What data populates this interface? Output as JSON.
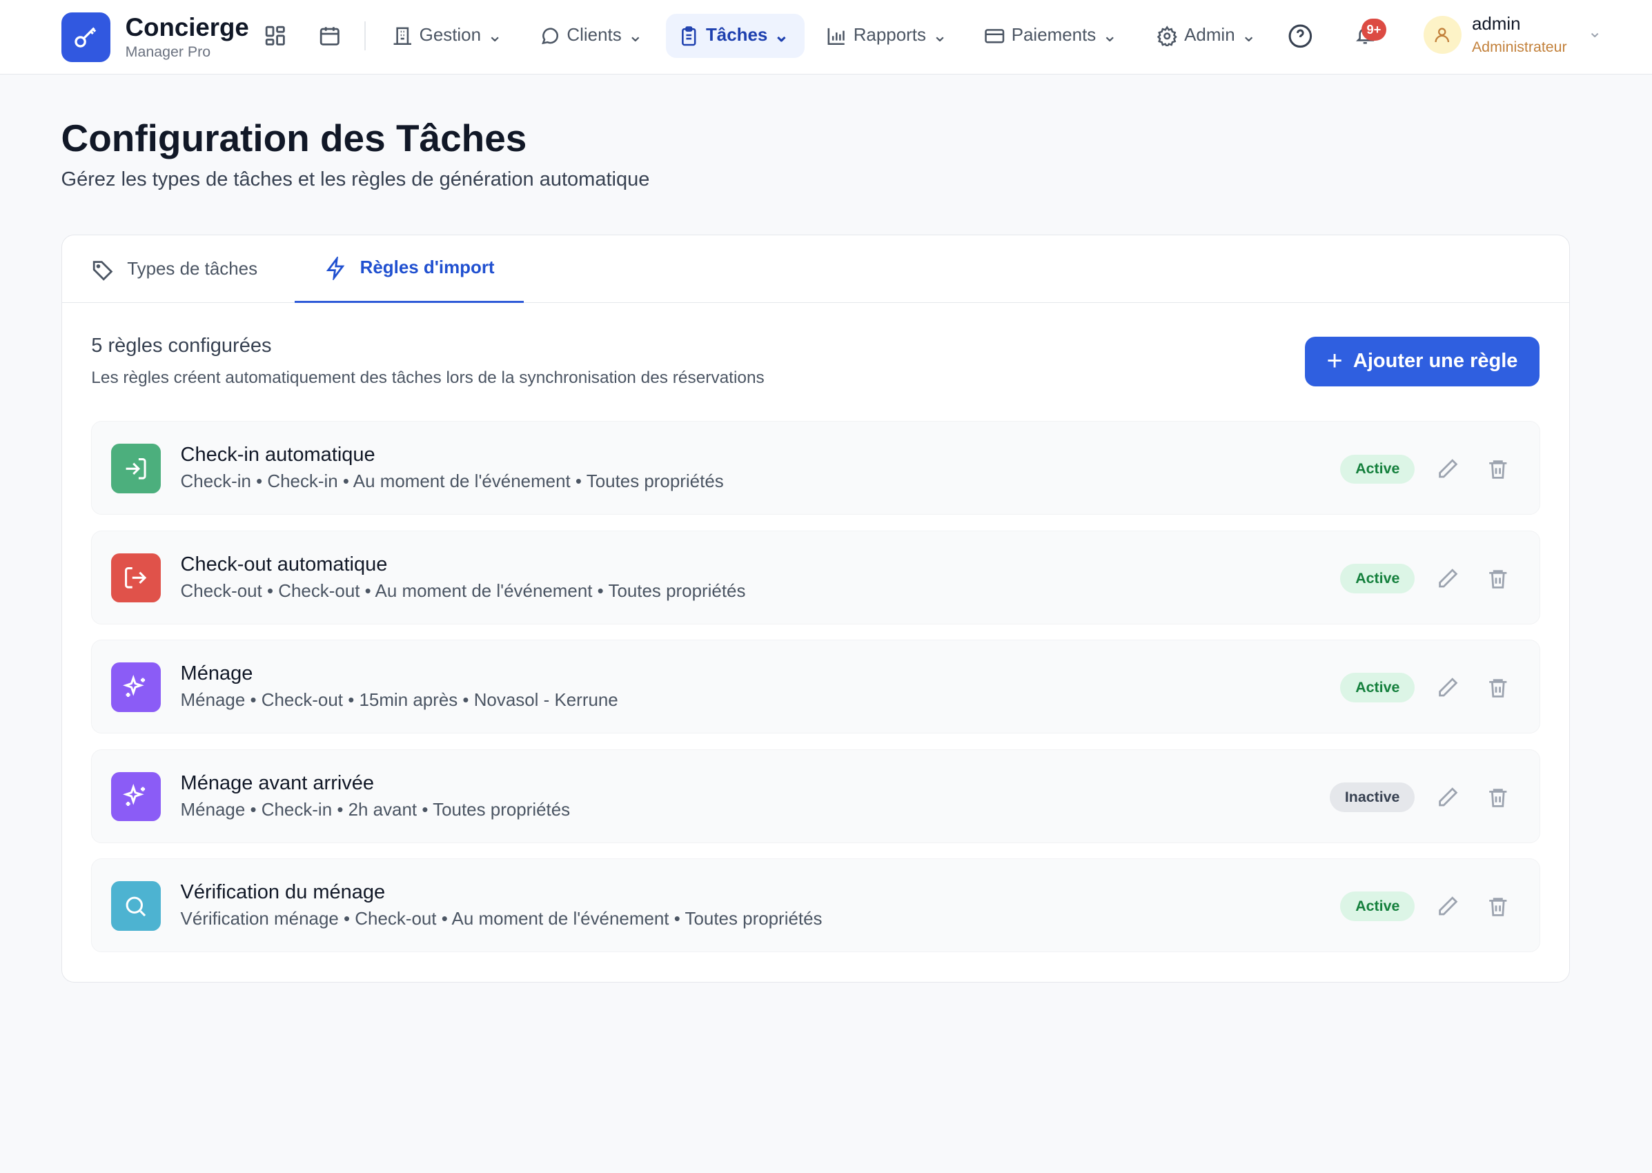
{
  "header": {
    "brand_title": "Concierge",
    "brand_subtitle": "Manager Pro",
    "nav": [
      {
        "label": "Gestion",
        "icon": "building-icon"
      },
      {
        "label": "Clients",
        "icon": "message-icon"
      },
      {
        "label": "Tâches",
        "icon": "clipboard-icon",
        "active": true
      },
      {
        "label": "Rapports",
        "icon": "bar-chart-icon"
      },
      {
        "label": "Paiements",
        "icon": "credit-card-icon"
      },
      {
        "label": "Admin",
        "icon": "gear-icon"
      }
    ],
    "notification_count": "9+",
    "user_name": "admin",
    "user_role": "Administrateur"
  },
  "page": {
    "title": "Configuration des Tâches",
    "subtitle": "Gérez les types de tâches et les règles de génération automatique"
  },
  "tabs": [
    {
      "label": "Types de tâches"
    },
    {
      "label": "Règles d'import",
      "active": true
    }
  ],
  "rules_panel": {
    "count_label": "5 règles configurées",
    "description": "Les règles créent automatiquement des tâches lors de la synchronisation des réservations",
    "add_button": "Ajouter une règle",
    "rules": [
      {
        "title": "Check-in automatique",
        "meta": "Check-in • Check-in • Au moment de l'événement • Toutes propriétés",
        "status": "Active",
        "icon": "login-icon",
        "color": "#4caf7d"
      },
      {
        "title": "Check-out automatique",
        "meta": "Check-out • Check-out • Au moment de l'événement • Toutes propriétés",
        "status": "Active",
        "icon": "logout-icon",
        "color": "#e0524a"
      },
      {
        "title": "Ménage",
        "meta": "Ménage • Check-out • 15min après • Novasol - Kerrune",
        "status": "Active",
        "icon": "sparkles-icon",
        "color": "#8b5cf6"
      },
      {
        "title": "Ménage avant arrivée",
        "meta": "Ménage • Check-in • 2h avant • Toutes propriétés",
        "status": "Inactive",
        "icon": "sparkles-icon",
        "color": "#8b5cf6"
      },
      {
        "title": "Vérification du ménage",
        "meta": "Vérification ménage • Check-out • Au moment de l'événement • Toutes propriétés",
        "status": "Active",
        "icon": "search-icon",
        "color": "#4db3d1"
      }
    ]
  }
}
